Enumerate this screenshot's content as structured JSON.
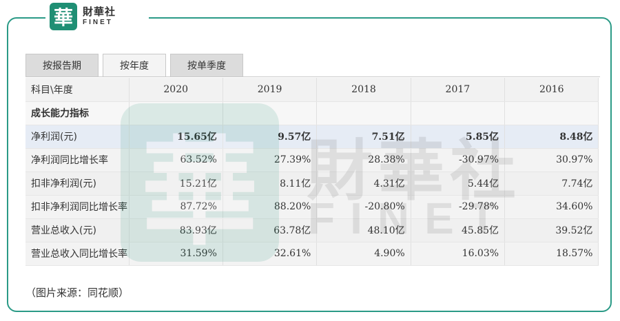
{
  "brand": {
    "mark": "華",
    "name_cn": "財華社",
    "name_en": "FINET",
    "color": "#1f8f74"
  },
  "tabs": [
    {
      "label": "按报告期",
      "active": false
    },
    {
      "label": "按年度",
      "active": true
    },
    {
      "label": "按单季度",
      "active": false
    }
  ],
  "table": {
    "header": [
      "科目\\年度",
      "2020",
      "2019",
      "2018",
      "2017",
      "2016"
    ],
    "section": "成长能力指标",
    "rows": [
      {
        "label": "净利润(元)",
        "values": [
          "15.65亿",
          "9.57亿",
          "7.51亿",
          "5.85亿",
          "8.48亿"
        ],
        "highlight": true
      },
      {
        "label": "净利润同比增长率",
        "values": [
          "63.52%",
          "27.39%",
          "28.38%",
          "-30.97%",
          "30.97%"
        ]
      },
      {
        "label": "扣非净利润(元)",
        "values": [
          "15.21亿",
          "8.11亿",
          "4.31亿",
          "5.44亿",
          "7.74亿"
        ]
      },
      {
        "label": "扣非净利润同比增长率",
        "values": [
          "87.72%",
          "88.20%",
          "-20.80%",
          "-29.78%",
          "34.60%"
        ]
      },
      {
        "label": "营业总收入(元)",
        "values": [
          "83.93亿",
          "63.78亿",
          "48.10亿",
          "45.85亿",
          "39.52亿"
        ]
      },
      {
        "label": "营业总收入同比增长率",
        "values": [
          "31.59%",
          "32.61%",
          "4.90%",
          "16.03%",
          "18.57%"
        ]
      }
    ]
  },
  "source_note": "（图片来源：同花顺）"
}
